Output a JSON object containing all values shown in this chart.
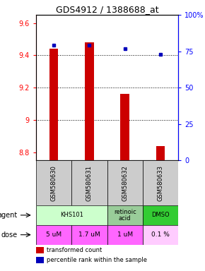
{
  "title": "GDS4912 / 1388688_at",
  "samples": [
    "GSM580630",
    "GSM580631",
    "GSM580632",
    "GSM580633"
  ],
  "bar_values": [
    9.44,
    9.48,
    9.16,
    8.84
  ],
  "dot_values": [
    79,
    79,
    77,
    73
  ],
  "ylim_left": [
    8.75,
    9.65
  ],
  "ylim_right": [
    0,
    100
  ],
  "yticks_left": [
    8.8,
    9.0,
    9.2,
    9.4,
    9.6
  ],
  "yticks_right": [
    0,
    25,
    50,
    75,
    100
  ],
  "ytick_labels_left": [
    "8.8",
    "9",
    "9.2",
    "9.4",
    "9.6"
  ],
  "ytick_labels_right": [
    "0",
    "25",
    "50",
    "75",
    "100%"
  ],
  "grid_values": [
    9.0,
    9.2,
    9.4
  ],
  "bar_color": "#cc0000",
  "dot_color": "#0000bb",
  "bar_bottom": 8.75,
  "bar_width": 0.25,
  "legend_bar_color": "#cc0000",
  "legend_dot_color": "#0000bb",
  "legend_bar_label": "transformed count",
  "legend_dot_label": "percentile rank within the sample",
  "agent_label": "agent",
  "dose_label": "dose",
  "agent_entries": [
    {
      "label": "KHS101",
      "start": 0,
      "end": 2,
      "color": "#ccffcc"
    },
    {
      "label": "retinoic\nacid",
      "start": 2,
      "end": 3,
      "color": "#99cc99"
    },
    {
      "label": "DMSO",
      "start": 3,
      "end": 4,
      "color": "#33cc33"
    }
  ],
  "dose_entries": [
    {
      "label": "5 uM",
      "color": "#ff66ff"
    },
    {
      "label": "1.7 uM",
      "color": "#ff66ff"
    },
    {
      "label": "1 uM",
      "color": "#ff66ff"
    },
    {
      "label": "0.1 %",
      "color": "#ffccff"
    }
  ],
  "sample_bg": "#cccccc"
}
